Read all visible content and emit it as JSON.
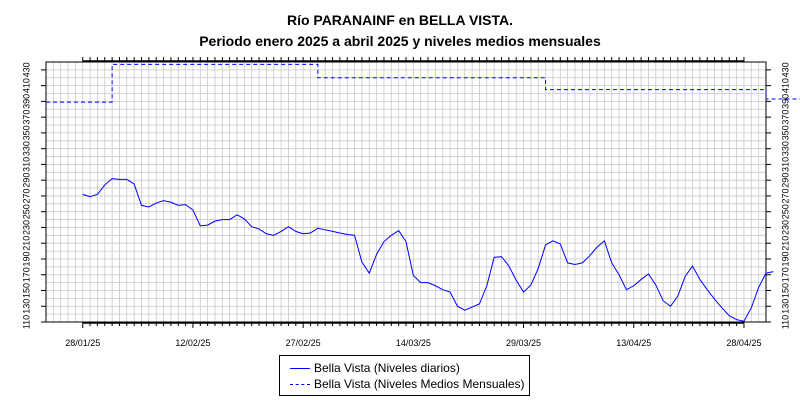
{
  "chart_data": {
    "type": "line",
    "title": "Río PARANAINF en BELLA VISTA.",
    "subtitle": "Periodo enero 2025 a abril 2025 y niveles medios mensuales",
    "xlabel": "",
    "ylabel": "",
    "x_range": [
      "2025-01-23",
      "2025-05-01"
    ],
    "ylim": [
      110,
      440
    ],
    "y_ticks": [
      110,
      130,
      150,
      170,
      190,
      210,
      230,
      250,
      270,
      290,
      310,
      330,
      350,
      370,
      390,
      410,
      430
    ],
    "x_tick_labels": [
      "28/01/25",
      "12/02/25",
      "27/02/25",
      "14/03/25",
      "29/03/25",
      "13/04/25",
      "28/04/25"
    ],
    "x_tick_dates": [
      "2025-01-28",
      "2025-02-12",
      "2025-02-27",
      "2025-03-14",
      "2025-03-29",
      "2025-04-13",
      "2025-04-28"
    ],
    "grid": true,
    "legend_position": "bottom",
    "series": [
      {
        "name": "Bella Vista (Niveles diarios)",
        "style": "solid",
        "color": "#0000ff",
        "start_date": "2025-01-28",
        "values": [
          272,
          269,
          272,
          284,
          292,
          291,
          291,
          285,
          258,
          256,
          261,
          264,
          262,
          258,
          259,
          252,
          232,
          233,
          238,
          240,
          240,
          246,
          241,
          231,
          228,
          222,
          220,
          225,
          231,
          225,
          222,
          223,
          229,
          227,
          225,
          223,
          221,
          220,
          186,
          172,
          196,
          212,
          220,
          226,
          212,
          169,
          160,
          160,
          156,
          151,
          148,
          130,
          125,
          129,
          133,
          156,
          192,
          193,
          181,
          163,
          148,
          157,
          178,
          208,
          213,
          209,
          185,
          183,
          185,
          194,
          205,
          213,
          185,
          170,
          151,
          156,
          164,
          171,
          157,
          137,
          130,
          143,
          168,
          181,
          164,
          151,
          139,
          128,
          118,
          113,
          111,
          128,
          154,
          172,
          174
        ]
      },
      {
        "name": "Bella Vista (Niveles Medios Mensuales)",
        "style": "dashed",
        "color": "#0000ff",
        "segments": [
          {
            "start": "2025-01-23",
            "end": "2025-02-01",
            "value": 389
          },
          {
            "start": "2025-02-01",
            "end": "2025-03-01",
            "value": 437
          },
          {
            "start": "2025-03-01",
            "end": "2025-04-01",
            "value": 420
          },
          {
            "start": "2025-04-01",
            "end": "2025-05-01",
            "value": 405
          },
          {
            "start": "2025-05-01",
            "end": "2025-05-06",
            "value": 393
          }
        ]
      }
    ]
  }
}
